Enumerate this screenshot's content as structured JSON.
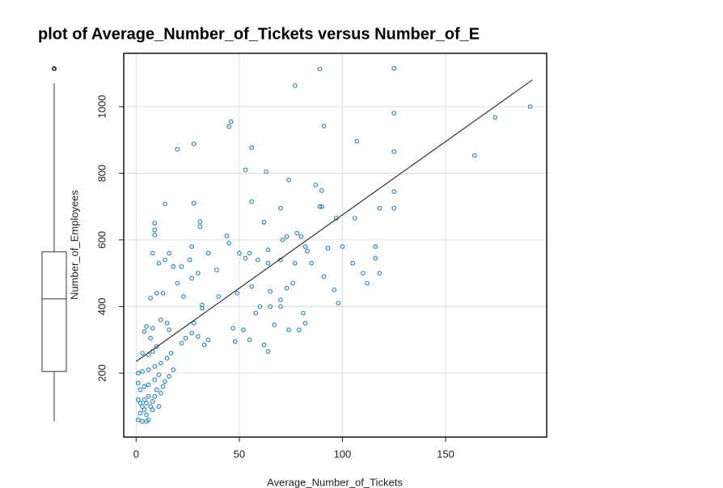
{
  "chart_data": {
    "type": "scatter",
    "title": "plot of Average_Number_of_Tickets versus Number_of_E",
    "x_label": "Average_Number_of_Tickets",
    "y_label": "Number_of_Employees",
    "color": "#2f8ac4",
    "xlim": [
      -6,
      199
    ],
    "xticks": [
      0,
      50,
      100,
      150
    ],
    "ylim": [
      8,
      1160
    ],
    "yticks": [
      200,
      400,
      600,
      800,
      1000
    ],
    "grid": true,
    "x": [
      89,
      125,
      77,
      191,
      174,
      125,
      46,
      45,
      91,
      28,
      20,
      56,
      107,
      164,
      125,
      53,
      63,
      74,
      87,
      90,
      125,
      56,
      28,
      14,
      90,
      118,
      125,
      97,
      106,
      62,
      9,
      31,
      70,
      89,
      9,
      9,
      31,
      44,
      27,
      45,
      73,
      78,
      116,
      100,
      93,
      82,
      83,
      64,
      55,
      71,
      80,
      105,
      110,
      112,
      116,
      118,
      96,
      98,
      91,
      85,
      77,
      64,
      70,
      59,
      50,
      53,
      35,
      30,
      27,
      20,
      14,
      11,
      16,
      18,
      22,
      26,
      8,
      10,
      7,
      13,
      23,
      39,
      40,
      49,
      56,
      65,
      73,
      76,
      70,
      70,
      60,
      58,
      52,
      48,
      47,
      55,
      62,
      64,
      67,
      74,
      79,
      82,
      81,
      65,
      32,
      32,
      28,
      33,
      35,
      30,
      27,
      24,
      22,
      16,
      15,
      12,
      8,
      5,
      4,
      7,
      10,
      3,
      6,
      8,
      12,
      15,
      17,
      18,
      16,
      14,
      11,
      9,
      6,
      4,
      2,
      1,
      1,
      3,
      6,
      9,
      1,
      2,
      3,
      4,
      5,
      6,
      7,
      8,
      9,
      10,
      12,
      13,
      1,
      3,
      5,
      2,
      4,
      6,
      11,
      8,
      5
    ],
    "values": [
      1113,
      1115,
      1063,
      1000,
      968,
      980,
      955,
      940,
      942,
      888,
      872,
      877,
      896,
      853,
      865,
      810,
      805,
      780,
      765,
      748,
      745,
      715,
      710,
      708,
      700,
      695,
      695,
      665,
      665,
      653,
      650,
      655,
      695,
      700,
      630,
      615,
      640,
      612,
      580,
      590,
      610,
      620,
      580,
      580,
      575,
      580,
      566,
      570,
      560,
      600,
      610,
      530,
      500,
      470,
      545,
      500,
      450,
      410,
      490,
      530,
      530,
      530,
      540,
      540,
      560,
      545,
      560,
      500,
      485,
      470,
      540,
      530,
      560,
      520,
      520,
      540,
      560,
      440,
      425,
      440,
      430,
      510,
      430,
      440,
      460,
      445,
      455,
      470,
      420,
      400,
      400,
      380,
      330,
      295,
      335,
      300,
      285,
      265,
      345,
      330,
      330,
      350,
      380,
      400,
      405,
      395,
      350,
      285,
      300,
      310,
      320,
      305,
      290,
      330,
      350,
      360,
      335,
      340,
      325,
      305,
      280,
      260,
      255,
      265,
      230,
      245,
      260,
      210,
      190,
      175,
      195,
      180,
      165,
      160,
      150,
      170,
      200,
      205,
      210,
      220,
      120,
      110,
      100,
      90,
      75,
      60,
      100,
      115,
      130,
      150,
      140,
      160,
      60,
      55,
      55,
      80,
      120,
      130,
      100,
      90,
      110
    ],
    "fit_line": {
      "x": [
        0,
        192
      ],
      "y": [
        235,
        1080
      ]
    },
    "boxplot": {
      "low": 55,
      "q1": 205,
      "median": 423,
      "q3": 564,
      "high": 1070,
      "outliers": [
        1114
      ]
    }
  }
}
